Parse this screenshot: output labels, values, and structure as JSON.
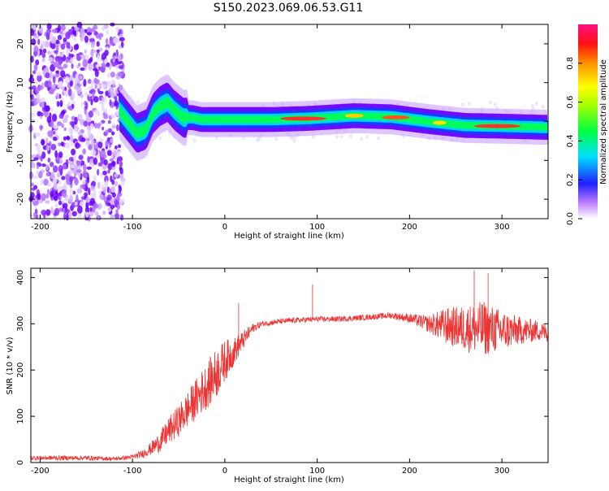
{
  "title": "S150.2023.069.06.53.G11",
  "chart_data": [
    {
      "type": "heatmap",
      "xlabel": "Height of straight line (km)",
      "ylabel": "Frequency (Hz)",
      "xlim": [
        -210,
        350
      ],
      "ylim": [
        -25,
        25
      ],
      "xticks": [
        -200,
        -100,
        0,
        100,
        200,
        300
      ],
      "yticks": [
        -20,
        -10,
        0,
        10,
        20
      ],
      "colorbar": {
        "label": "Normalized spectral amplitude",
        "range": [
          0,
          1
        ],
        "ticks": [
          "0.0",
          "0.2",
          "0.4",
          "0.6",
          "0.8"
        ]
      },
      "ridge_center_hz": [
        [
          -115,
          3
        ],
        [
          -105,
          0
        ],
        [
          -95,
          -3
        ],
        [
          -85,
          -2
        ],
        [
          -78,
          2
        ],
        [
          -70,
          4
        ],
        [
          -62,
          5
        ],
        [
          -55,
          3
        ],
        [
          -45,
          1
        ],
        [
          -35,
          1
        ],
        [
          -25,
          0.5
        ],
        [
          0,
          0.5
        ],
        [
          50,
          0.5
        ],
        [
          90,
          0.8
        ],
        [
          140,
          1.5
        ],
        [
          180,
          1.2
        ],
        [
          220,
          0
        ],
        [
          260,
          -1
        ],
        [
          300,
          -1.2
        ],
        [
          350,
          -1.5
        ]
      ]
    },
    {
      "type": "line",
      "xlabel": "Height of straight line (km)",
      "ylabel": "SNR (10 * v/v)",
      "xlim": [
        -210,
        350
      ],
      "ylim": [
        0,
        420
      ],
      "xticks": [
        -200,
        -100,
        0,
        100,
        200,
        300
      ],
      "yticks": [
        0,
        100,
        200,
        300,
        400
      ],
      "color": "#ee3333",
      "series": [
        {
          "x": [
            -210,
            -180,
            -150,
            -120,
            -100,
            -90,
            -80,
            -70,
            -60,
            -50,
            -40,
            -30,
            -20,
            -10,
            0,
            10,
            20,
            30,
            40,
            60,
            80,
            100,
            120,
            140,
            160,
            180,
            200,
            220,
            240,
            260,
            280,
            300,
            320,
            340,
            350
          ],
          "values": [
            10,
            10,
            10,
            8,
            12,
            18,
            30,
            45,
            70,
            90,
            115,
            140,
            165,
            190,
            220,
            240,
            265,
            290,
            300,
            305,
            308,
            310,
            310,
            312,
            315,
            318,
            312,
            300,
            295,
            290,
            290,
            285,
            285,
            285,
            280
          ],
          "noise": [
            5,
            5,
            5,
            4,
            5,
            8,
            14,
            22,
            30,
            34,
            40,
            45,
            50,
            55,
            45,
            30,
            20,
            10,
            6,
            6,
            6,
            6,
            6,
            6,
            6,
            7,
            10,
            18,
            40,
            50,
            60,
            45,
            30,
            22,
            20
          ]
        }
      ],
      "spikes": [
        [
          15,
          345
        ],
        [
          95,
          385
        ],
        [
          270,
          415
        ],
        [
          285,
          410
        ]
      ]
    }
  ]
}
